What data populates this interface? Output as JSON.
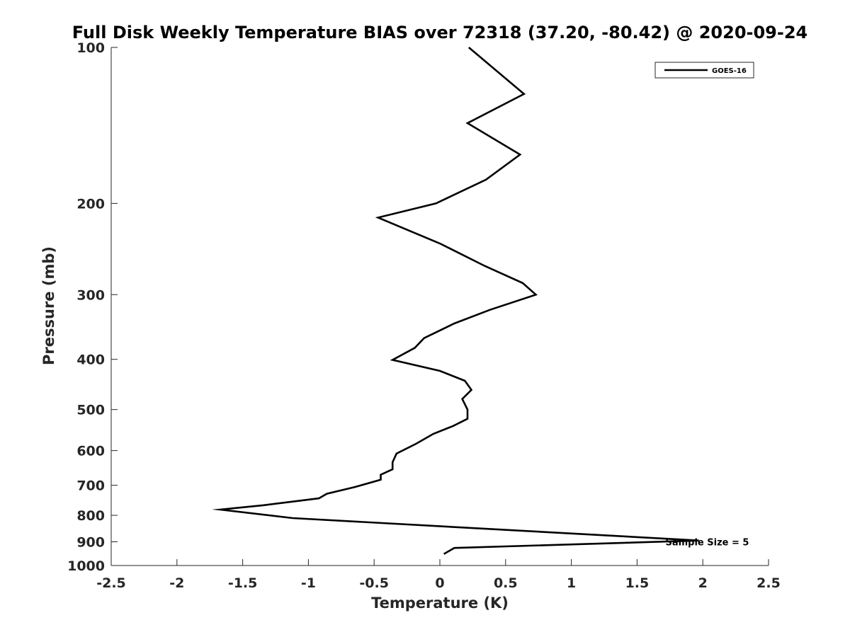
{
  "chart_data": {
    "type": "line",
    "title": "Full Disk Weekly Temperature BIAS over 72318 (37.20, -80.42) @ 2020-09-24",
    "xlabel": "Temperature (K)",
    "ylabel": "Pressure (mb)",
    "xlim": [
      -2.5,
      2.5
    ],
    "ylim": [
      100,
      1000
    ],
    "yscale": "log",
    "yreversed": true,
    "grid": false,
    "legend_position": "top-right",
    "x_ticks": [
      -2.5,
      -2,
      -1.5,
      -1,
      -0.5,
      0,
      0.5,
      1,
      1.5,
      2,
      2.5
    ],
    "x_tick_labels": [
      "-2.5",
      "-2",
      "-1.5",
      "-1",
      "-0.5",
      "0",
      "0.5",
      "1",
      "1.5",
      "2",
      "2.5"
    ],
    "y_ticks": [
      100,
      200,
      300,
      400,
      500,
      600,
      700,
      800,
      900,
      1000
    ],
    "y_tick_labels": [
      "100",
      "200",
      "300",
      "400",
      "500",
      "600",
      "700",
      "800",
      "900",
      "1000"
    ],
    "series": [
      {
        "name": "GOES-16",
        "color": "#000000",
        "points": [
          {
            "x": 0.03,
            "y": 950
          },
          {
            "x": 0.11,
            "y": 925
          },
          {
            "x": 1.97,
            "y": 895
          },
          {
            "x": -1.12,
            "y": 810
          },
          {
            "x": -1.67,
            "y": 780
          },
          {
            "x": -1.34,
            "y": 765
          },
          {
            "x": -0.92,
            "y": 742
          },
          {
            "x": -0.86,
            "y": 727
          },
          {
            "x": -0.65,
            "y": 706
          },
          {
            "x": -0.45,
            "y": 683
          },
          {
            "x": -0.45,
            "y": 668
          },
          {
            "x": -0.36,
            "y": 652
          },
          {
            "x": -0.36,
            "y": 632
          },
          {
            "x": -0.33,
            "y": 608
          },
          {
            "x": -0.18,
            "y": 582
          },
          {
            "x": -0.05,
            "y": 557
          },
          {
            "x": 0.1,
            "y": 538
          },
          {
            "x": 0.21,
            "y": 521
          },
          {
            "x": 0.21,
            "y": 500
          },
          {
            "x": 0.17,
            "y": 477
          },
          {
            "x": 0.24,
            "y": 458
          },
          {
            "x": 0.19,
            "y": 440
          },
          {
            "x": 0.0,
            "y": 421
          },
          {
            "x": -0.36,
            "y": 401
          },
          {
            "x": -0.19,
            "y": 380
          },
          {
            "x": -0.12,
            "y": 364
          },
          {
            "x": 0.11,
            "y": 341
          },
          {
            "x": 0.38,
            "y": 321
          },
          {
            "x": 0.73,
            "y": 300
          },
          {
            "x": 0.63,
            "y": 285
          },
          {
            "x": 0.34,
            "y": 264
          },
          {
            "x": 0.0,
            "y": 239
          },
          {
            "x": -0.47,
            "y": 213
          },
          {
            "x": -0.03,
            "y": 200
          },
          {
            "x": 0.35,
            "y": 180
          },
          {
            "x": 0.61,
            "y": 161
          },
          {
            "x": 0.21,
            "y": 140
          },
          {
            "x": 0.64,
            "y": 123
          },
          {
            "x": 0.22,
            "y": 100
          }
        ]
      }
    ],
    "annotations": [
      {
        "text": "Sample Size = 5",
        "x": 2.05,
        "y": 900
      }
    ]
  }
}
